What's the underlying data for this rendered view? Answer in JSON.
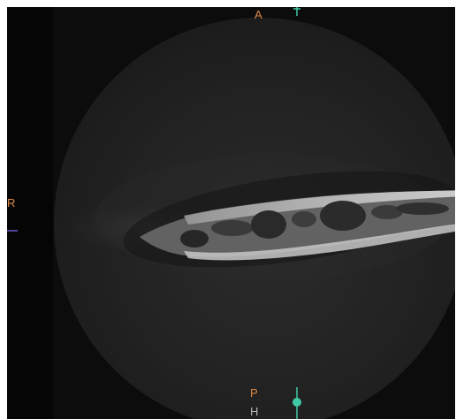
{
  "orientation": {
    "anterior": "A",
    "right": "R",
    "posterior": "P",
    "head": "H"
  },
  "colors": {
    "label_orange": "#e08a45",
    "label_gray": "#b8b8b8",
    "crosshair_teal": "#3fc9a6",
    "crosshair_purple": "#6a5acd",
    "scan_field": "#262626",
    "background": "#0e0e0e"
  },
  "viewer": {
    "view": "axial CT slice"
  }
}
